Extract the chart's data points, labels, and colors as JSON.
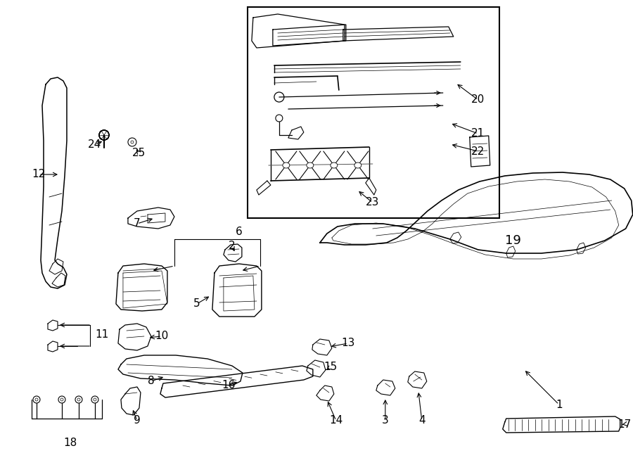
{
  "bg_color": "#ffffff",
  "lc": "#000000",
  "fig_width": 9.0,
  "fig_height": 6.61,
  "dpi": 100,
  "label_fs": 11,
  "leader_lw": 0.8,
  "part_lw": 0.9
}
